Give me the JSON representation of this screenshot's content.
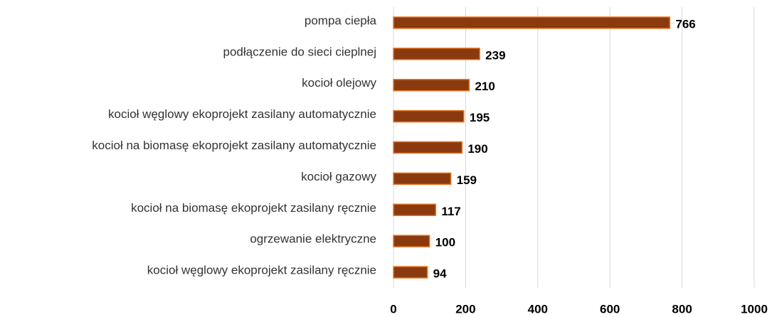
{
  "chart_data": {
    "type": "bar",
    "orientation": "horizontal",
    "categories": [
      "pompa ciepła",
      "podłączenie do sieci cieplnej",
      "kocioł olejowy",
      "kocioł węglowy ekoprojekt zasilany automatycznie",
      "kocioł na biomasę ekoprojekt zasilany automatycznie",
      "kocioł gazowy",
      "kocioł na biomasę ekoprojekt zasilany ręcznie",
      "ogrzewanie elektryczne",
      "kocioł węglowy ekoprojekt zasilany ręcznie"
    ],
    "values": [
      766,
      239,
      210,
      195,
      190,
      159,
      117,
      100,
      94
    ],
    "color": "#8b3a0f",
    "edge_color": "#e87722",
    "xlim": [
      0,
      1000
    ],
    "xticks": [
      0,
      200,
      400,
      600,
      800,
      1000
    ],
    "grid": true
  }
}
